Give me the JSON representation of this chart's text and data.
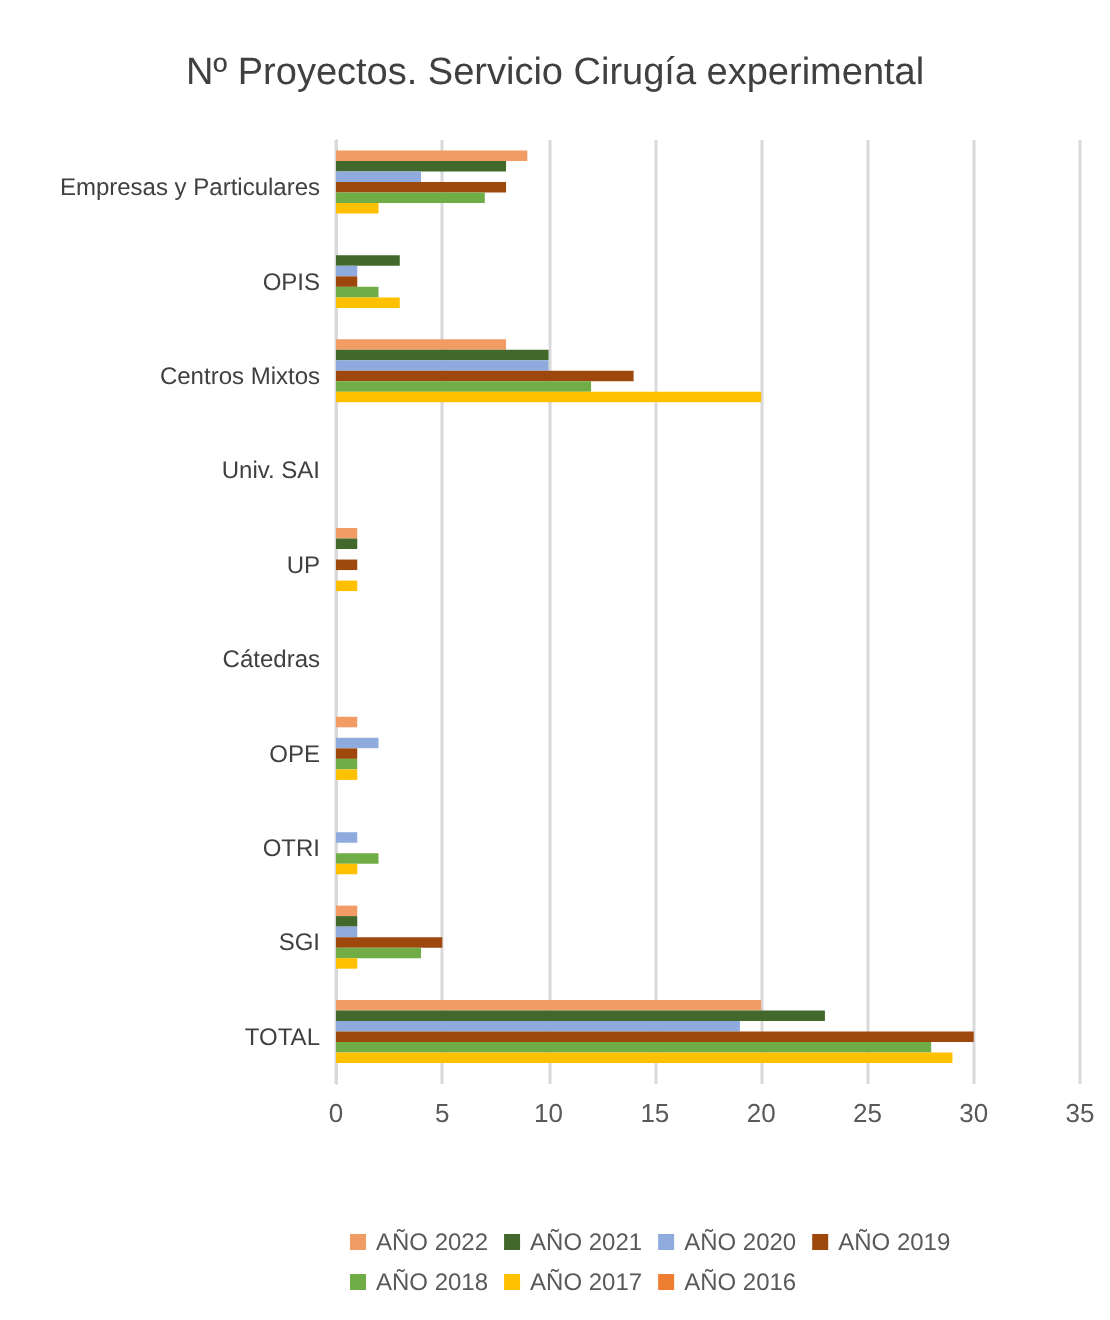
{
  "chart_data": {
    "type": "bar",
    "orientation": "horizontal",
    "title": "Nº Proyectos. Servicio Cirugía experimental",
    "categories": [
      "Empresas y Particulares",
      "OPIS",
      "Centros Mixtos",
      "Univ. SAI",
      "UP",
      "Cátedras",
      "OPE",
      "OTRI",
      "SGI",
      "TOTAL"
    ],
    "series": [
      {
        "name": "AÑO 2022",
        "color": "#f19c65",
        "values": [
          9,
          null,
          8,
          null,
          1,
          null,
          1,
          null,
          1,
          20
        ]
      },
      {
        "name": "AÑO 2021",
        "color": "#43682b",
        "values": [
          8,
          3,
          10,
          null,
          1,
          null,
          null,
          null,
          1,
          23
        ]
      },
      {
        "name": "AÑO 2020",
        "color": "#8faadc",
        "values": [
          4,
          1,
          10,
          null,
          null,
          null,
          2,
          1,
          1,
          19
        ]
      },
      {
        "name": "AÑO 2019",
        "color": "#9e480e",
        "values": [
          8,
          1,
          14,
          null,
          1,
          null,
          1,
          null,
          5,
          30
        ]
      },
      {
        "name": "AÑO 2018",
        "color": "#70ad47",
        "values": [
          7,
          2,
          12,
          null,
          null,
          null,
          1,
          2,
          4,
          28
        ]
      },
      {
        "name": "AÑO 2017",
        "color": "#ffc000",
        "values": [
          2,
          3,
          20,
          null,
          1,
          null,
          1,
          1,
          1,
          29
        ]
      },
      {
        "name": "AÑO 2016",
        "color": "#ed7d31",
        "values": [
          null,
          null,
          null,
          null,
          null,
          null,
          null,
          null,
          null,
          null
        ]
      }
    ],
    "xlim": [
      0,
      35
    ],
    "xticks": [
      0,
      5,
      10,
      15,
      20,
      25,
      30,
      35
    ],
    "grid": "x",
    "legend": "bottom"
  }
}
